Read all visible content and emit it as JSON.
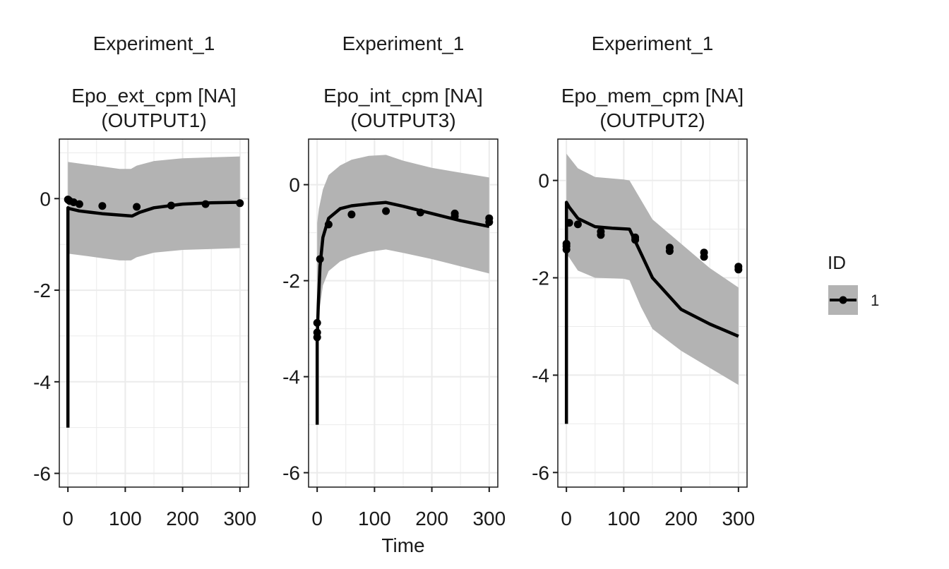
{
  "chart_data": {
    "type": "line",
    "xlabel": "Time",
    "legend": {
      "title": "ID",
      "entries": [
        "1"
      ],
      "position": "right"
    },
    "grid": true,
    "panels": [
      {
        "experiment": "Experiment_1",
        "title": "Epo_ext_cpm [NA]",
        "subtitle": "(OUTPUT1)",
        "xlim": [
          -15,
          315
        ],
        "ylim": [
          -6.3,
          1.3
        ],
        "xticks": [
          0,
          100,
          200,
          300
        ],
        "xtick_labels": [
          "0",
          "100",
          "200",
          "300"
        ],
        "yticks": [
          0,
          -2,
          -4,
          -6
        ],
        "ytick_labels": [
          "0",
          "-2",
          "-4",
          "-6"
        ],
        "band_upper": [
          [
            0,
            0.8
          ],
          [
            30,
            0.75
          ],
          [
            60,
            0.7
          ],
          [
            90,
            0.65
          ],
          [
            110,
            0.65
          ],
          [
            120,
            0.72
          ],
          [
            150,
            0.82
          ],
          [
            200,
            0.88
          ],
          [
            250,
            0.9
          ],
          [
            300,
            0.92
          ]
        ],
        "band_lower": [
          [
            0,
            -1.2
          ],
          [
            30,
            -1.25
          ],
          [
            60,
            -1.3
          ],
          [
            90,
            -1.35
          ],
          [
            110,
            -1.35
          ],
          [
            120,
            -1.28
          ],
          [
            150,
            -1.18
          ],
          [
            200,
            -1.12
          ],
          [
            250,
            -1.1
          ],
          [
            300,
            -1.08
          ]
        ],
        "line": [
          [
            0,
            -5.0
          ],
          [
            0,
            -0.2
          ],
          [
            3,
            -0.22
          ],
          [
            20,
            -0.27
          ],
          [
            60,
            -0.33
          ],
          [
            100,
            -0.37
          ],
          [
            112,
            -0.38
          ],
          [
            125,
            -0.3
          ],
          [
            150,
            -0.2
          ],
          [
            200,
            -0.12
          ],
          [
            250,
            -0.09
          ],
          [
            300,
            -0.08
          ]
        ],
        "points": [
          [
            0,
            -0.02
          ],
          [
            1,
            -0.03
          ],
          [
            3,
            -0.05
          ],
          [
            10,
            -0.08
          ],
          [
            20,
            -0.12
          ],
          [
            60,
            -0.16
          ],
          [
            120,
            -0.18
          ],
          [
            180,
            -0.15
          ],
          [
            240,
            -0.12
          ],
          [
            300,
            -0.1
          ]
        ]
      },
      {
        "experiment": "Experiment_1",
        "title": "Epo_int_cpm [NA]",
        "subtitle": "(OUTPUT3)",
        "xlim": [
          -15,
          315
        ],
        "ylim": [
          -6.3,
          0.95
        ],
        "xticks": [
          0,
          100,
          200,
          300
        ],
        "xtick_labels": [
          "0",
          "100",
          "200",
          "300"
        ],
        "yticks": [
          0,
          -2,
          -4,
          -6
        ],
        "ytick_labels": [
          "0",
          "-2",
          "-4",
          "-6"
        ],
        "band_upper": [
          [
            0,
            -0.8
          ],
          [
            3,
            -0.5
          ],
          [
            10,
            -0.1
          ],
          [
            20,
            0.2
          ],
          [
            40,
            0.4
          ],
          [
            60,
            0.52
          ],
          [
            90,
            0.6
          ],
          [
            120,
            0.62
          ],
          [
            150,
            0.5
          ],
          [
            200,
            0.35
          ],
          [
            250,
            0.25
          ],
          [
            300,
            0.15
          ]
        ],
        "band_lower": [
          [
            0,
            -3.2
          ],
          [
            3,
            -2.7
          ],
          [
            10,
            -2.1
          ],
          [
            20,
            -1.8
          ],
          [
            40,
            -1.6
          ],
          [
            60,
            -1.5
          ],
          [
            90,
            -1.4
          ],
          [
            120,
            -1.35
          ],
          [
            150,
            -1.42
          ],
          [
            200,
            -1.55
          ],
          [
            250,
            -1.7
          ],
          [
            300,
            -1.85
          ]
        ],
        "line": [
          [
            0,
            -5.0
          ],
          [
            0,
            -3.2
          ],
          [
            2,
            -2.5
          ],
          [
            5,
            -1.7
          ],
          [
            10,
            -1.1
          ],
          [
            20,
            -0.7
          ],
          [
            40,
            -0.5
          ],
          [
            60,
            -0.44
          ],
          [
            90,
            -0.4
          ],
          [
            120,
            -0.37
          ],
          [
            150,
            -0.45
          ],
          [
            200,
            -0.6
          ],
          [
            250,
            -0.75
          ],
          [
            300,
            -0.87
          ]
        ],
        "points": [
          [
            0,
            -2.88
          ],
          [
            0,
            -3.08
          ],
          [
            0,
            -3.18
          ],
          [
            5,
            -1.55
          ],
          [
            20,
            -0.83
          ],
          [
            60,
            -0.62
          ],
          [
            120,
            -0.55
          ],
          [
            180,
            -0.58
          ],
          [
            240,
            -0.6
          ],
          [
            240,
            -0.66
          ],
          [
            300,
            -0.7
          ],
          [
            300,
            -0.78
          ]
        ]
      },
      {
        "experiment": "Experiment_1",
        "title": "Epo_mem_cpm [NA]",
        "subtitle": "(OUTPUT2)",
        "xlim": [
          -15,
          315
        ],
        "ylim": [
          -6.3,
          0.85
        ],
        "xticks": [
          0,
          100,
          200,
          300
        ],
        "xtick_labels": [
          "0",
          "100",
          "200",
          "300"
        ],
        "yticks": [
          0,
          -2,
          -4,
          -6
        ],
        "ytick_labels": [
          "0",
          "-2",
          "-4",
          "-6"
        ],
        "band_upper": [
          [
            0,
            0.55
          ],
          [
            20,
            0.25
          ],
          [
            50,
            0.07
          ],
          [
            100,
            0.02
          ],
          [
            110,
            0.0
          ],
          [
            130,
            -0.4
          ],
          [
            150,
            -0.8
          ],
          [
            200,
            -1.3
          ],
          [
            250,
            -1.8
          ],
          [
            300,
            -2.2
          ]
        ],
        "band_lower": [
          [
            0,
            -1.5
          ],
          [
            20,
            -1.85
          ],
          [
            50,
            -2.0
          ],
          [
            100,
            -2.02
          ],
          [
            110,
            -2.05
          ],
          [
            130,
            -2.6
          ],
          [
            150,
            -3.05
          ],
          [
            200,
            -3.5
          ],
          [
            250,
            -3.85
          ],
          [
            300,
            -4.2
          ]
        ],
        "line": [
          [
            0,
            -5.0
          ],
          [
            0,
            -0.45
          ],
          [
            5,
            -0.55
          ],
          [
            20,
            -0.78
          ],
          [
            50,
            -0.95
          ],
          [
            80,
            -0.98
          ],
          [
            110,
            -1.0
          ],
          [
            130,
            -1.5
          ],
          [
            150,
            -2.0
          ],
          [
            200,
            -2.65
          ],
          [
            250,
            -2.95
          ],
          [
            300,
            -3.2
          ]
        ],
        "points": [
          [
            0,
            -1.3
          ],
          [
            0,
            -1.35
          ],
          [
            0,
            -1.42
          ],
          [
            5,
            -0.87
          ],
          [
            20,
            -0.9
          ],
          [
            60,
            -1.05
          ],
          [
            60,
            -1.12
          ],
          [
            120,
            -1.17
          ],
          [
            120,
            -1.22
          ],
          [
            180,
            -1.38
          ],
          [
            180,
            -1.45
          ],
          [
            240,
            -1.48
          ],
          [
            240,
            -1.57
          ],
          [
            300,
            -1.77
          ],
          [
            300,
            -1.83
          ]
        ]
      }
    ]
  },
  "style": {
    "band_color": "#b3b3b3",
    "line_color": "#000000",
    "grid_color": "#ebebeb",
    "frame_color": "#1a1a1a"
  }
}
